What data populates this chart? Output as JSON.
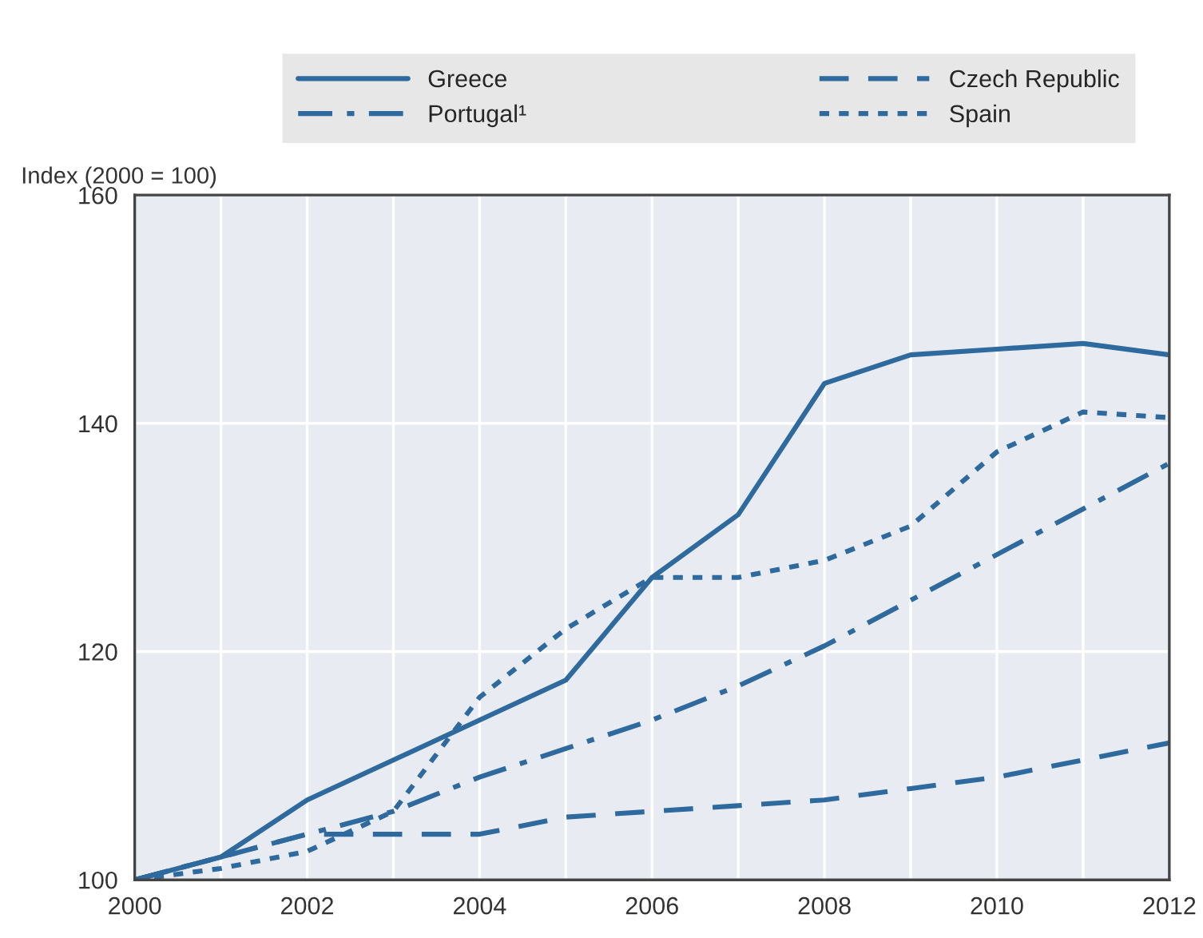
{
  "chart_data": {
    "type": "line",
    "ylabel": "Index (2000 = 100)",
    "x": [
      2000,
      2001,
      2002,
      2003,
      2004,
      2005,
      2006,
      2007,
      2008,
      2009,
      2010,
      2011,
      2012
    ],
    "series": [
      {
        "name": "Greece",
        "color": "#2e6a9e",
        "line_style": "solid",
        "values": [
          100,
          102,
          107,
          110.5,
          114,
          117.5,
          126.5,
          132,
          143.5,
          146,
          146.5,
          147,
          146
        ]
      },
      {
        "name": "Czech Republic",
        "color": "#2e6a9e",
        "line_style": "dashed",
        "values": [
          100,
          102,
          104,
          104,
          104,
          105.5,
          106,
          106.5,
          107,
          108,
          109,
          110.5,
          112
        ]
      },
      {
        "name": "Portugal¹",
        "color": "#2e6a9e",
        "line_style": "dashdot",
        "values": [
          100,
          102,
          104,
          106,
          109,
          111.5,
          114,
          117,
          120.5,
          124.5,
          128.5,
          132.5,
          136.5
        ]
      },
      {
        "name": "Spain",
        "color": "#2e6a9e",
        "line_style": "dotted",
        "values": [
          100,
          101,
          102.5,
          106,
          116,
          122,
          126.5,
          126.5,
          128,
          131,
          137.5,
          141,
          140.5
        ]
      }
    ],
    "xlim": [
      2000,
      2012
    ],
    "ylim": [
      100,
      160
    ],
    "xticks": [
      2000,
      {
        "value": 2001,
        "label": null
      },
      2002,
      {
        "value": 2003,
        "label": null
      },
      2004,
      {
        "value": 2005,
        "label": null
      },
      2006,
      {
        "value": 2007,
        "label": null
      },
      2008,
      {
        "value": 2009,
        "label": null
      },
      2010,
      {
        "value": 2011,
        "label": null
      },
      2012
    ],
    "yticks": [
      100,
      120,
      140,
      160
    ],
    "grid": true,
    "legend": "top",
    "marker": "none"
  }
}
